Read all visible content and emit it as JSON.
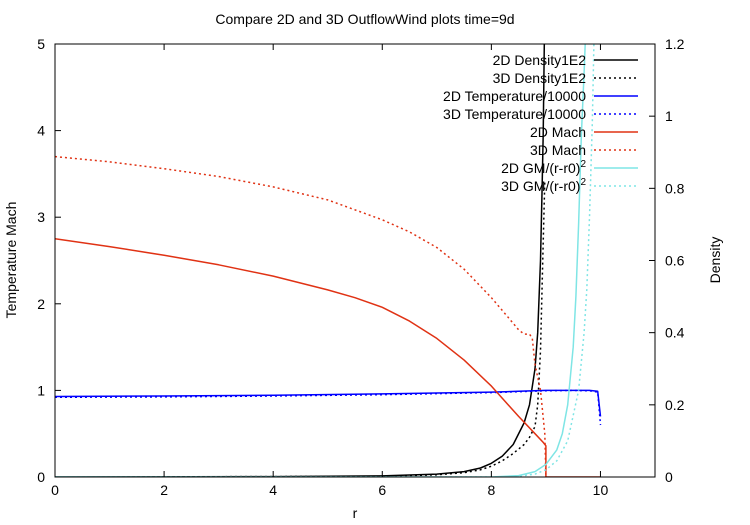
{
  "chart_data": {
    "type": "line",
    "title": "Compare 2D and 3D OutflowWind plots time=9d",
    "xlabel": "r",
    "ylabel": "Temperature  Mach",
    "y2label": "Density",
    "xlim": [
      0,
      11
    ],
    "ylim": [
      0,
      5
    ],
    "y2lim": [
      0,
      1.2
    ],
    "x_ticks": [
      "0",
      "2",
      "4",
      "6",
      "8",
      "10"
    ],
    "y_ticks": [
      "0",
      "1",
      "2",
      "3",
      "4",
      "5"
    ],
    "y2_ticks": [
      "0",
      "0.2",
      "0.4",
      "0.6",
      "0.8",
      "1",
      "1.2"
    ],
    "grid": false,
    "legend_position": "top-right",
    "series": [
      {
        "name": "2D Density1E2",
        "axis": "y2",
        "color": "#000000",
        "dash": "solid",
        "x": [
          0,
          4,
          6,
          7,
          7.5,
          7.8,
          8.0,
          8.2,
          8.4,
          8.6,
          8.7,
          8.8,
          8.85,
          8.9,
          8.93,
          8.95,
          8.97
        ],
        "y": [
          0,
          0.001,
          0.003,
          0.008,
          0.015,
          0.025,
          0.038,
          0.058,
          0.09,
          0.15,
          0.2,
          0.3,
          0.4,
          0.6,
          0.8,
          0.95,
          1.2
        ]
      },
      {
        "name": "3D Density1E2",
        "axis": "y2",
        "color": "#000000",
        "dash": "dotted",
        "x": [
          0,
          4,
          6,
          7,
          7.5,
          7.8,
          8.0,
          8.2,
          8.4,
          8.6,
          8.7,
          8.8,
          8.85,
          8.9,
          8.95,
          8.98
        ],
        "y": [
          0,
          0.001,
          0.002,
          0.006,
          0.012,
          0.02,
          0.03,
          0.045,
          0.065,
          0.09,
          0.11,
          0.14,
          0.2,
          0.35,
          0.65,
          0.82
        ]
      },
      {
        "name": "2D Temperature/10000",
        "axis": "y",
        "color": "#0000ff",
        "dash": "solid",
        "x": [
          0,
          2,
          4,
          6,
          8,
          8.5,
          9,
          9.5,
          9.8,
          9.95,
          10.0
        ],
        "y": [
          0.93,
          0.935,
          0.945,
          0.96,
          0.98,
          0.99,
          1.0,
          1.0,
          1.0,
          0.99,
          0.7
        ]
      },
      {
        "name": "3D Temperature/10000",
        "axis": "y",
        "color": "#0000ff",
        "dash": "dotted",
        "x": [
          0,
          2,
          4,
          6,
          8,
          8.5,
          9,
          9.5,
          9.8,
          9.95,
          10.0
        ],
        "y": [
          0.92,
          0.925,
          0.935,
          0.95,
          0.975,
          0.985,
          0.995,
          1.0,
          0.995,
          0.98,
          0.6
        ]
      },
      {
        "name": "2D Mach",
        "axis": "y",
        "color": "#e03214",
        "dash": "solid",
        "x": [
          0,
          1,
          2,
          3,
          4,
          5,
          5.5,
          6,
          6.5,
          7,
          7.5,
          8,
          8.5,
          8.8,
          8.95,
          9.0,
          9.0,
          10.0
        ],
        "y": [
          2.75,
          2.66,
          2.56,
          2.45,
          2.32,
          2.16,
          2.07,
          1.96,
          1.8,
          1.6,
          1.35,
          1.05,
          0.7,
          0.5,
          0.4,
          0.36,
          0,
          0
        ]
      },
      {
        "name": "3D Mach",
        "axis": "y",
        "color": "#e03214",
        "dash": "dotted",
        "x": [
          0,
          1,
          2,
          3,
          4,
          5,
          6,
          6.5,
          7,
          7.5,
          8,
          8.3,
          8.5,
          8.6,
          8.7,
          8.75,
          8.8,
          8.9,
          8.98,
          9.0
        ],
        "y": [
          3.7,
          3.64,
          3.56,
          3.47,
          3.35,
          3.2,
          2.97,
          2.83,
          2.65,
          2.4,
          2.07,
          1.85,
          1.7,
          1.65,
          1.65,
          1.6,
          1.3,
          1.0,
          0.5,
          0
        ]
      },
      {
        "name": "2D GM/(r-r0)^2",
        "axis": "y2",
        "color": "#7fe5e5",
        "dash": "solid",
        "x": [
          0,
          8,
          8.5,
          8.8,
          9.0,
          9.2,
          9.3,
          9.4,
          9.5,
          9.55,
          9.6,
          9.65,
          9.7,
          9.72
        ],
        "y": [
          0,
          0,
          0.004,
          0.015,
          0.035,
          0.075,
          0.12,
          0.2,
          0.36,
          0.5,
          0.7,
          0.95,
          1.12,
          1.2
        ]
      },
      {
        "name": "3D GM/(r-r0)^2",
        "axis": "y2",
        "color": "#7fe5e5",
        "dash": "dotted",
        "x": [
          0,
          8,
          8.5,
          8.8,
          9.0,
          9.2,
          9.4,
          9.6,
          9.7,
          9.75,
          9.8,
          9.85,
          9.88
        ],
        "y": [
          0,
          0,
          0.002,
          0.008,
          0.02,
          0.045,
          0.1,
          0.24,
          0.4,
          0.52,
          0.72,
          0.98,
          1.2
        ]
      }
    ]
  }
}
